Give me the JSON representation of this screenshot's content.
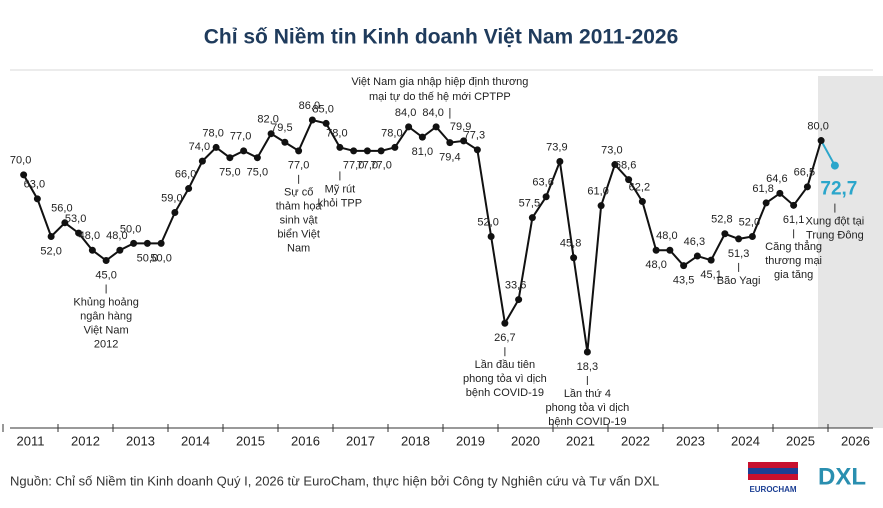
{
  "chart_data": {
    "type": "line",
    "title": "Chỉ số Niềm tin Kinh doanh Việt Nam 2011-2026",
    "x": [
      2011.375,
      2011.625,
      2011.875,
      2012.125,
      2012.375,
      2012.625,
      2012.875,
      2013.125,
      2013.375,
      2013.625,
      2013.875,
      2014.125,
      2014.375,
      2014.625,
      2014.875,
      2015.125,
      2015.375,
      2015.625,
      2015.875,
      2016.125,
      2016.375,
      2016.625,
      2016.875,
      2017.125,
      2017.375,
      2017.625,
      2017.875,
      2018.125,
      2018.375,
      2018.625,
      2018.875,
      2019.125,
      2019.375,
      2019.625,
      2019.875,
      2020.125,
      2020.375,
      2020.625,
      2020.875,
      2021.125,
      2021.375,
      2021.625,
      2021.875,
      2022.125,
      2022.375,
      2022.625,
      2022.875,
      2023.125,
      2023.375,
      2023.625,
      2023.875,
      2024.125,
      2024.375,
      2024.625,
      2024.875,
      2025.125,
      2025.375,
      2025.625,
      2025.875,
      2026.125
    ],
    "series": [
      {
        "color": "#111111",
        "last_point_color": "#2ba6cb",
        "values": [
          70,
          63,
          52,
          56,
          53,
          48,
          45,
          48,
          50,
          50,
          50,
          59,
          66,
          74,
          78,
          75,
          77,
          75,
          82,
          79.5,
          77,
          86,
          85,
          78,
          77,
          77,
          77,
          78,
          84,
          81,
          84,
          79.4,
          79.9,
          77.3,
          52,
          26.7,
          33.6,
          57.5,
          63.6,
          73.9,
          45.8,
          18.3,
          61,
          73,
          68.6,
          62.2,
          48,
          48,
          43.5,
          46.3,
          45.1,
          52.8,
          51.3,
          52,
          61.8,
          64.6,
          61.1,
          66.5,
          80,
          72.7
        ],
        "value_labels": [
          "70,0",
          "63,0",
          "52,0",
          "56,0",
          "53,0",
          "48,0",
          "45,0",
          "48,0",
          "50,0",
          "50,0",
          "50,0",
          "59,0",
          "66,0",
          "74,0",
          "78,0",
          "75,0",
          "77,0",
          "75,0",
          "82,0",
          "79,5",
          "77,0",
          "86,0",
          "85,0",
          "78,0",
          "77,0",
          "77,0",
          "77,0",
          "78,0",
          "84,0",
          "81,0",
          "84,0",
          "79,4",
          "79,9",
          "77,3",
          "52,0",
          "26,7",
          "33,6",
          "57,5",
          "63,6",
          "73,9",
          "45,8",
          "18,3",
          "61,0",
          "73,0",
          "68,6",
          "62,2",
          "48,0",
          "48,0",
          "43,5",
          "46,3",
          "45,1",
          "52,8",
          "51,3",
          "52,0",
          "61,8",
          "64,6",
          "61,1",
          "66,5",
          "80,0",
          "72,7"
        ]
      }
    ],
    "xlim": [
      2011,
      2027
    ],
    "xticks": [
      2011,
      2012,
      2013,
      2014,
      2015,
      2016,
      2017,
      2018,
      2019,
      2020,
      2021,
      2022,
      2023,
      2024,
      2025,
      2026
    ],
    "annotations": [
      [
        "Khủng hoảng",
        "ngân hàng",
        "Việt Nam",
        "2012"
      ],
      [
        "Sự cố",
        "thảm họa",
        "sinh vật",
        "biển Việt",
        "Nam"
      ],
      [
        "Mỹ rút",
        "khỏi TPP"
      ],
      [
        "Việt Nam gia nhập hiệp định thương",
        "mại tự do thế hệ mới CPTPP"
      ],
      [
        "Lần đầu tiên",
        "phong tỏa vì dịch",
        "bệnh COVID-19"
      ],
      [
        "Lần thứ 4",
        "phong tỏa vì dịch",
        "bệnh COVID-19"
      ],
      [
        "Bão Yagi"
      ],
      [
        "Căng thẳng",
        "thương mại",
        "gia tăng"
      ],
      [
        "Xung đột tại",
        "Trung Đông"
      ]
    ],
    "source": "Nguồn: Chỉ số Niềm tin Kinh doanh Quý I, 2026 từ EuroCham, thực hiện bởi Công ty Nghiên cứu và Tư vấn DXL",
    "logos": [
      "EUROCHAM",
      "DXL"
    ]
  }
}
